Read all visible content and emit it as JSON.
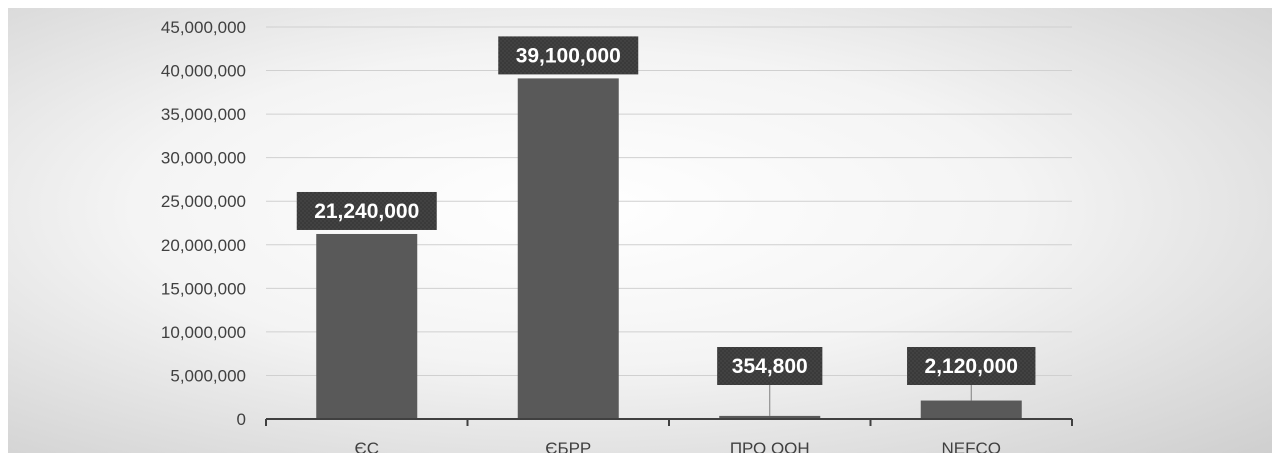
{
  "chart_data": {
    "type": "bar",
    "categories": [
      "ЄС",
      "ЄБРР",
      "ПРО ООН",
      "NEFCO"
    ],
    "values": [
      21240000,
      39100000,
      354800,
      2120000
    ],
    "data_labels": [
      "21,240,000",
      "39,100,000",
      "354,800",
      "2,120,000"
    ],
    "y_ticks": [
      {
        "value": 0,
        "label": "0"
      },
      {
        "value": 5000000,
        "label": "5,000,000"
      },
      {
        "value": 10000000,
        "label": "10,000,000"
      },
      {
        "value": 15000000,
        "label": "15,000,000"
      },
      {
        "value": 20000000,
        "label": "20,000,000"
      },
      {
        "value": 25000000,
        "label": "25,000,000"
      },
      {
        "value": 30000000,
        "label": "30,000,000"
      },
      {
        "value": 35000000,
        "label": "35,000,000"
      },
      {
        "value": 40000000,
        "label": "40,000,000"
      },
      {
        "value": 45000000,
        "label": "45,000,000"
      }
    ],
    "ylim": [
      0,
      45000000
    ],
    "title": "",
    "xlabel": "",
    "ylabel": "",
    "grid": true,
    "legend": "none",
    "colors": {
      "bar": "#595959",
      "label_box": "#3a3a3a",
      "label_text": "#ffffff",
      "grid": "#d0d0d0",
      "axis": "#404040",
      "tick_text": "#404040"
    }
  }
}
